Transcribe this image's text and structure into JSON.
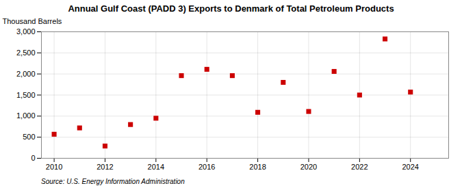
{
  "chart_data": {
    "type": "scatter",
    "title": "Annual Gulf Coast (PADD 3) Exports to Denmark of Total Petroleum Products",
    "ylabel": "Thousand Barrels",
    "source": "Source: U.S. Energy Information Administration",
    "x": [
      2010,
      2011,
      2012,
      2013,
      2014,
      2015,
      2016,
      2017,
      2018,
      2019,
      2020,
      2021,
      2022,
      2023,
      2024
    ],
    "values": [
      570,
      720,
      290,
      800,
      950,
      1960,
      2110,
      1960,
      1090,
      1800,
      1110,
      2060,
      1500,
      2830,
      1570
    ],
    "color": "#cc0000",
    "marker": "square",
    "xlim": [
      2009.5,
      2025.5
    ],
    "xticks": [
      2010,
      2012,
      2014,
      2016,
      2018,
      2020,
      2022,
      2024
    ],
    "ylim": [
      0,
      3000
    ],
    "yticks": [
      0,
      500,
      {
        "value": 1000,
        "label": "1,000"
      },
      {
        "value": 1500,
        "label": "1,500"
      },
      {
        "value": 2000,
        "label": "2,000"
      },
      {
        "value": 2500,
        "label": "2,500"
      },
      {
        "value": 3000,
        "label": "3,000"
      }
    ],
    "grid": true
  }
}
